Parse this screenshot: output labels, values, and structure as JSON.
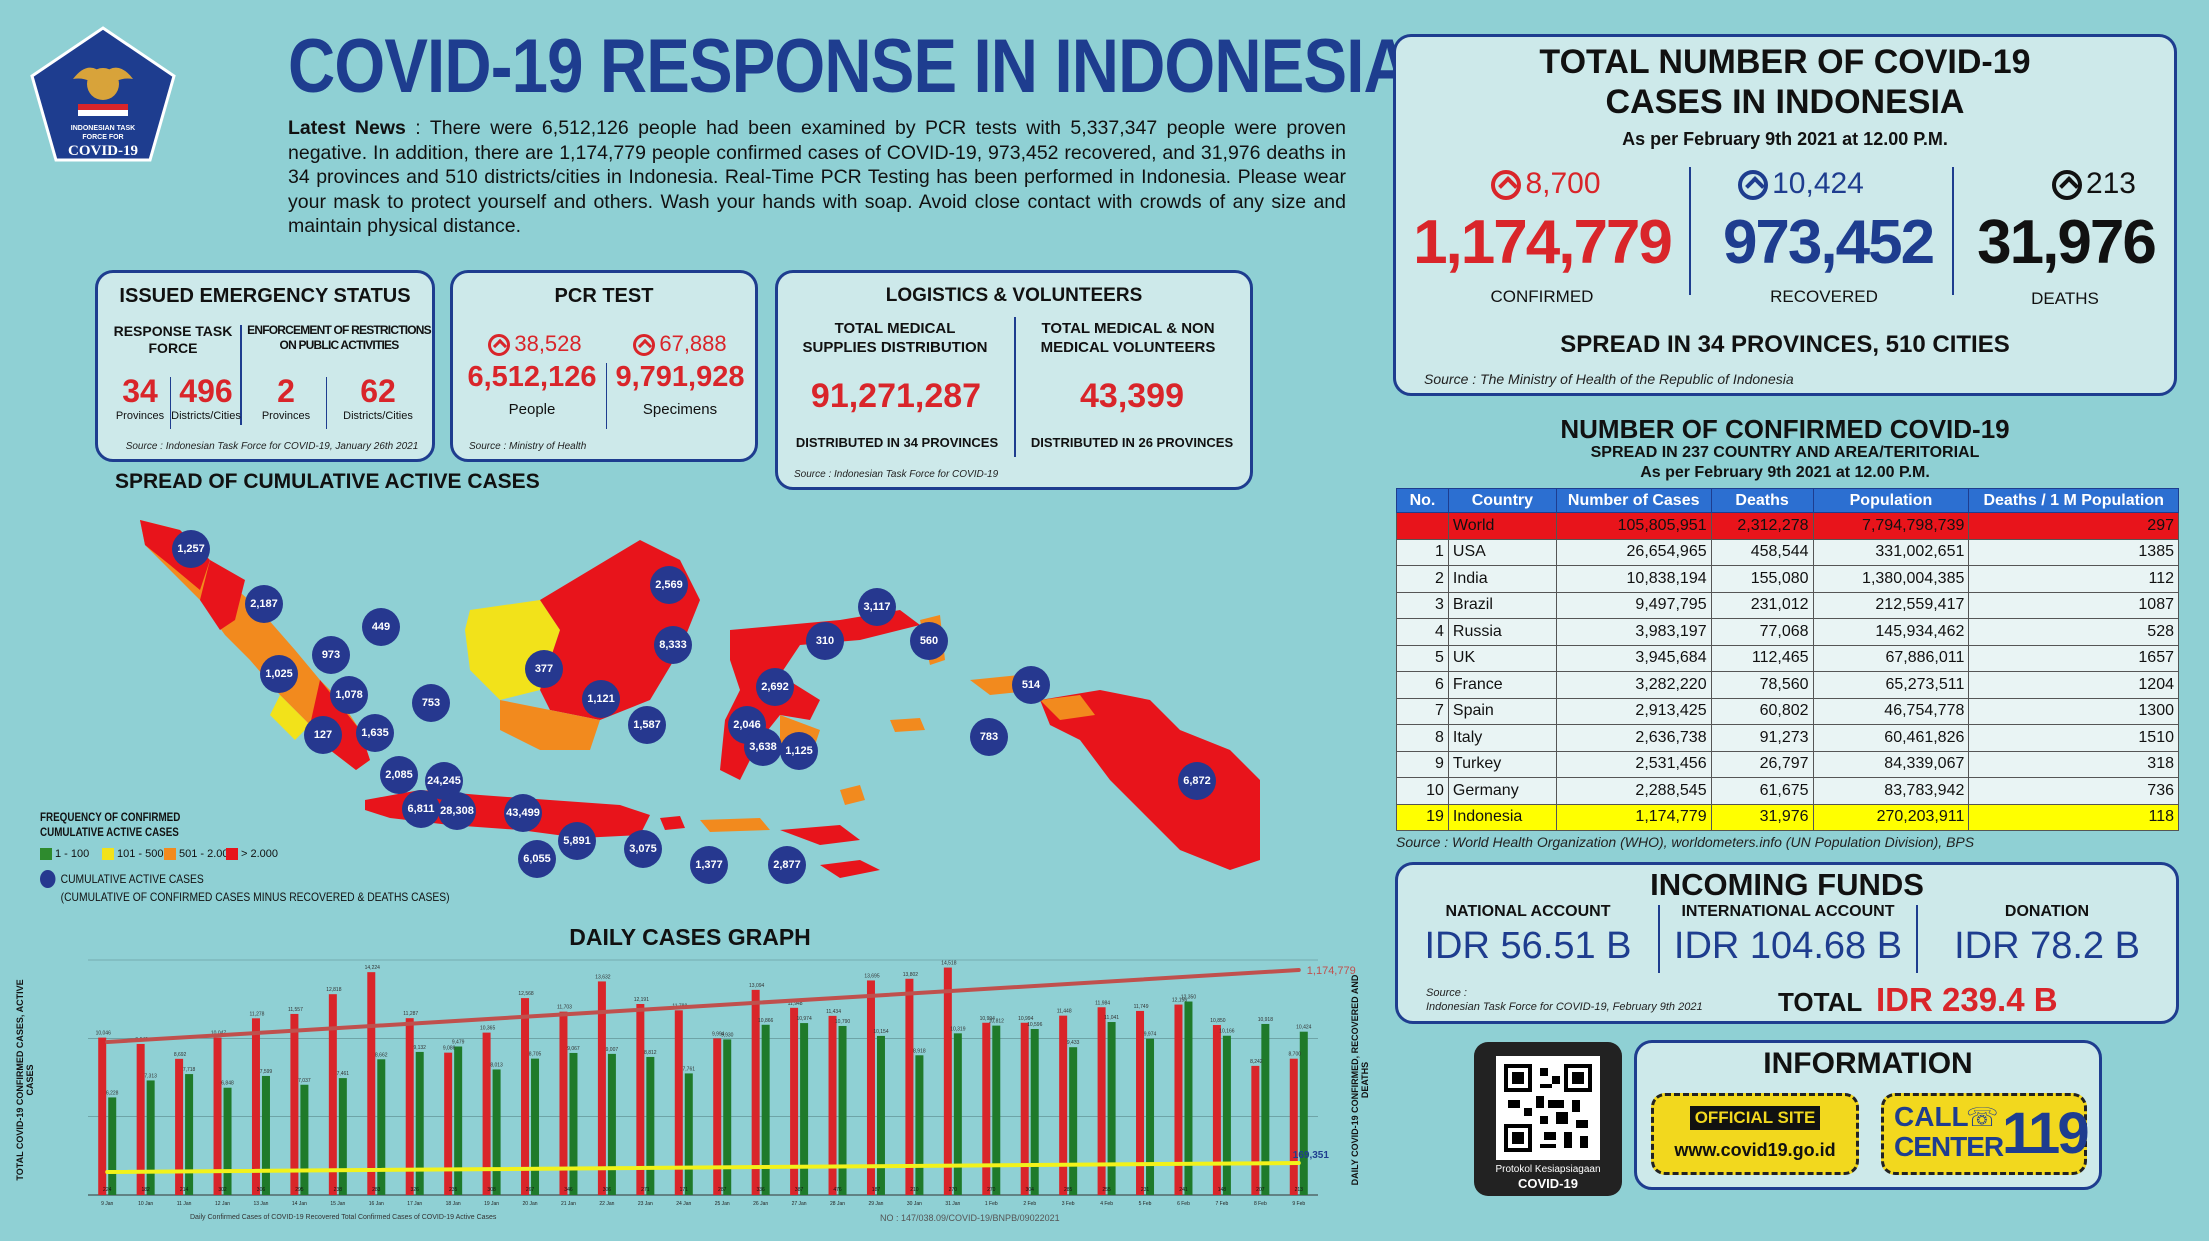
{
  "logo": {
    "line1": "INDONESIAN TASK",
    "line2": "FORCE FOR",
    "line3": "COVID-19"
  },
  "header": {
    "title": "COVID-19 RESPONSE IN INDONESIA",
    "news_lead": "Latest News",
    "news_body": " : There were 6,512,126 people had been examined by PCR tests with 5,337,347 people were proven negative. In addition, there are 1,174,779 people confirmed cases of COVID-19, 973,452 recovered, and 31,976 deaths in 34 provinces and 510 districts/cities in Indonesia. Real-Time PCR Testing has been performed in Indonesia. Please wear your mask to protect yourself and others. Wash your hands with soap. Avoid close contact with crowds of any size and maintain physical distance."
  },
  "emergency": {
    "title": "ISSUED EMERGENCY STATUS",
    "col1_head": "RESPONSE TASK FORCE",
    "col2_head": "ENFORCEMENT OF RESTRICTIONS ON PUBLIC ACTIVITIES",
    "v1": "34",
    "l1": "Provinces",
    "v2": "496",
    "l2": "Districts/Cities",
    "v3": "2",
    "l3": "Provinces",
    "v4": "62",
    "l4": "Districts/Cities",
    "source": "Source : Indonesian Task Force for COVID-19, January 26th 2021"
  },
  "pcr": {
    "title": "PCR TEST",
    "inc_people": "38,528",
    "inc_specimens": "67,888",
    "people": "6,512,126",
    "specimens": "9,791,928",
    "people_label": "People",
    "specimens_label": "Specimens",
    "source": "Source : Ministry of Health"
  },
  "logistics": {
    "title": "LOGISTICS & VOLUNTEERS",
    "l_head": "TOTAL MEDICAL SUPPLIES DISTRIBUTION",
    "r_head": "TOTAL MEDICAL & NON MEDICAL VOLUNTEERS",
    "l_val": "91,271,287",
    "r_val": "43,399",
    "l_foot": "DISTRIBUTED IN 34 PROVINCES",
    "r_foot": "DISTRIBUTED IN 26 PROVINCES",
    "source": "Source : Indonesian Task Force for COVID-19"
  },
  "totals": {
    "title1": "TOTAL NUMBER OF COVID-19",
    "title2": "CASES IN INDONESIA",
    "asof": "As per February 9th 2021 at 12.00 P.M.",
    "inc_confirmed": "8,700",
    "inc_recovered": "10,424",
    "inc_deaths": "213",
    "confirmed": "1,174,779",
    "recovered": "973,452",
    "deaths": "31,976",
    "confirmed_label": "CONFIRMED",
    "recovered_label": "RECOVERED",
    "deaths_label": "DEATHS",
    "spread": "SPREAD IN 34 PROVINCES, 510 CITIES",
    "source": "Source : The Ministry of Health of the Republic of Indonesia"
  },
  "world": {
    "title": "NUMBER OF CONFIRMED COVID-19",
    "subtitle": "SPREAD IN 237 COUNTRY AND AREA/TERITORIAL",
    "asof": "As per February 9th 2021 at 12.00 P.M.",
    "headers": [
      "No.",
      "Country",
      "Number of Cases",
      "Deaths",
      "Population",
      "Deaths / 1 M Population"
    ],
    "rows": [
      [
        "",
        "World",
        "105,805,951",
        "2,312,278",
        "7,794,798,739",
        "297"
      ],
      [
        "1",
        "USA",
        "26,654,965",
        "458,544",
        "331,002,651",
        "1385"
      ],
      [
        "2",
        "India",
        "10,838,194",
        "155,080",
        "1,380,004,385",
        "112"
      ],
      [
        "3",
        "Brazil",
        "9,497,795",
        "231,012",
        "212,559,417",
        "1087"
      ],
      [
        "4",
        "Russia",
        "3,983,197",
        "77,068",
        "145,934,462",
        "528"
      ],
      [
        "5",
        "UK",
        "3,945,684",
        "112,465",
        "67,886,011",
        "1657"
      ],
      [
        "6",
        "France",
        "3,282,220",
        "78,560",
        "65,273,511",
        "1204"
      ],
      [
        "7",
        "Spain",
        "2,913,425",
        "60,802",
        "46,754,778",
        "1300"
      ],
      [
        "8",
        "Italy",
        "2,636,738",
        "91,273",
        "60,461,826",
        "1510"
      ],
      [
        "9",
        "Turkey",
        "2,531,456",
        "26,797",
        "84,339,067",
        "318"
      ],
      [
        "10",
        "Germany",
        "2,288,545",
        "61,675",
        "83,783,942",
        "736"
      ],
      [
        "19",
        "Indonesia",
        "1,174,779",
        "31,976",
        "270,203,911",
        "118"
      ]
    ],
    "source": "Source : World Health Organization (WHO), worldometers.info (UN Population Division), BPS"
  },
  "funds": {
    "title": "INCOMING FUNDS",
    "national_label": "NATIONAL ACCOUNT",
    "international_label": "INTERNATIONAL ACCOUNT",
    "donation_label": "DONATION",
    "national": "IDR 56.51 B",
    "international": "IDR 104.68 B",
    "donation": "IDR 78.2 B",
    "source_label": "Source :",
    "source": "Indonesian Task Force for COVID-19, February 9th 2021",
    "total_label": "TOTAL",
    "total": "IDR 239.4 B"
  },
  "info": {
    "title": "INFORMATION",
    "qr_caption1": "Protokol Kesiapsiagaan",
    "qr_caption2": "COVID-19",
    "site_label": "OFFICIAL SITE",
    "site_url": "www.covid19.go.id",
    "call_label1": "CALL",
    "call_label2": "CENTER",
    "call_number": "119"
  },
  "map": {
    "title": "SPREAD OF CUMULATIVE ACTIVE CASES",
    "legend_title1": "FREQUENCY OF CONFIRMED",
    "legend_title2": "CUMULATIVE ACTIVE CASES",
    "legend": [
      {
        "label": "1 - 100",
        "color": "#2e8b2e"
      },
      {
        "label": "101 - 500",
        "color": "#f2e21a"
      },
      {
        "label": "501 - 2.000",
        "color": "#f28a1e"
      },
      {
        "label": "> 2.000",
        "color": "#e8141b"
      }
    ],
    "bubble_legend": "CUMULATIVE ACTIVE CASES",
    "bubble_legend_note": "(CUMULATIVE OF CONFIRMED CASES MINUS RECOVERED & DEATHS CASES)",
    "bubbles": [
      "1,257",
      "2,187",
      "973",
      "1,025",
      "449",
      "1,078",
      "753",
      "127",
      "1,635",
      "2,085",
      "6,811",
      "24,245",
      "28,308",
      "43,499",
      "6,055",
      "5,891",
      "3,075",
      "1,377",
      "2,877",
      "377",
      "1,121",
      "2,569",
      "8,333",
      "1,587",
      "2,692",
      "2,046",
      "3,638",
      "1,125",
      "310",
      "3,117",
      "560",
      "514",
      "783",
      "6,872"
    ]
  },
  "chart_data": {
    "type": "bar",
    "title": "DAILY CASES GRAPH",
    "ylabel_left": "TOTAL COVID-19 CONFIRMED CASES, ACTIVE CASES",
    "ylabel_right": "DAILY COVID-19 CONFIRMED, RECOVERED AND DEATHS",
    "ylim": [
      0,
      15000
    ],
    "categories": [
      "9 Jan",
      "10 Jan",
      "11 Jan",
      "12 Jan",
      "13 Jan",
      "14 Jan",
      "15 Jan",
      "16 Jan",
      "17 Jan",
      "18 Jan",
      "19 Jan",
      "20 Jan",
      "21 Jan",
      "22 Jan",
      "23 Jan",
      "24 Jan",
      "25 Jan",
      "26 Jan",
      "27 Jan",
      "28 Jan",
      "29 Jan",
      "30 Jan",
      "31 Jan",
      "1 Feb",
      "2 Feb",
      "3 Feb",
      "4 Feb",
      "5 Feb",
      "6 Feb",
      "7 Feb",
      "8 Feb",
      "9 Feb"
    ],
    "series": [
      {
        "name": "Daily Confirmed Cases of COVID-19",
        "color": "#d9252a",
        "values": [
          10046,
          9640,
          8692,
          10047,
          11278,
          11557,
          12818,
          14224,
          11287,
          9086,
          10365,
          12568,
          11703,
          13632,
          12191,
          11788,
          9994,
          13094,
          11948,
          11434,
          13695,
          13802,
          14518,
          10994,
          10994,
          11448,
          11984,
          11749,
          12156,
          10850,
          8242,
          8700
        ]
      },
      {
        "name": "Recovered",
        "color": "#1f7a2a",
        "values": [
          6228,
          7313,
          7718,
          6848,
          7599,
          7037,
          7461,
          8662,
          9132,
          9479,
          8013,
          8705,
          9067,
          9007,
          8812,
          7761,
          9930,
          10866,
          10974,
          10790,
          10154,
          8918,
          10319,
          10812,
          10596,
          9433,
          11041,
          9974,
          12350,
          10166,
          10918,
          10424
        ]
      },
      {
        "name": "Death",
        "color": "#111111",
        "values": [
          224,
          182,
          214,
          302,
          306,
          295,
          238,
          283,
          326,
          235,
          308,
          267,
          346,
          306,
          271,
          171,
          287,
          336,
          387,
          476,
          187,
          210,
          270,
          270,
          304,
          285,
          255,
          231,
          241,
          148,
          207,
          213
        ]
      }
    ],
    "total_line": {
      "name": "Total Confirmed Cases",
      "end_label": "1,174,779"
    },
    "active_line": {
      "name": "Active Cases",
      "end_label": "169,351"
    },
    "legend_text": "Daily Confirmed Cases of COVID-19   Recovered   Total Confirmed Cases of COVID-19   Active Cases",
    "footer_note": "NO : 147/038.09/COVID-19/BNPB/09022021"
  }
}
